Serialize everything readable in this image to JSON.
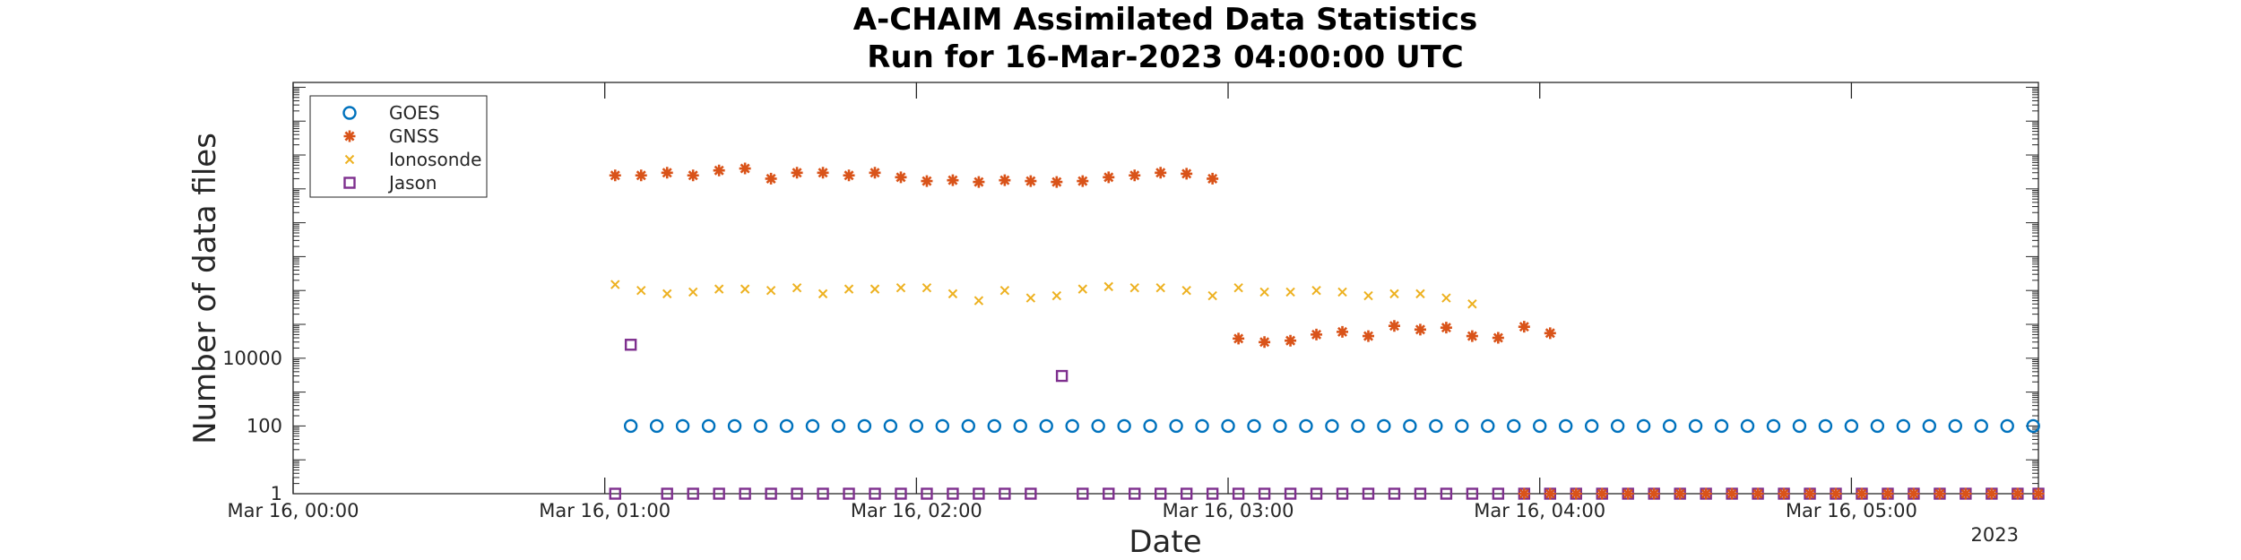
{
  "chart_data": {
    "type": "scatter",
    "title": [
      "A-CHAIM Assimilated Data Statistics",
      "Run for 16-Mar-2023 04:00:00 UTC"
    ],
    "xlabel": "Date",
    "ylabel": "Number of data files",
    "x_unit": "time of day, 16 Mar 2023 (UTC)",
    "xlim": [
      "00:00",
      "05:36"
    ],
    "x_ticks": [
      "00:00",
      "01:00",
      "02:00",
      "03:00",
      "04:00",
      "05:00"
    ],
    "x_tick_labels": [
      "Mar 16, 00:00",
      "Mar 16, 01:00",
      "Mar 16, 02:00",
      "Mar 16, 03:00",
      "Mar 16, 04:00",
      "Mar 16, 05:00"
    ],
    "x_year_label": "2023",
    "y_scale": "log",
    "y_ticks": [
      1,
      100,
      10000
    ],
    "y_tick_labels": [
      "1",
      "100",
      "10000"
    ],
    "legend_position": "top-left",
    "grid": false,
    "series": [
      {
        "name": "GOES",
        "marker": "circle",
        "color": "#0072BD",
        "points": [
          [
            "01:05",
            100
          ],
          [
            "01:10",
            100
          ],
          [
            "01:15",
            100
          ],
          [
            "01:20",
            100
          ],
          [
            "01:25",
            100
          ],
          [
            "01:30",
            100
          ],
          [
            "01:35",
            100
          ],
          [
            "01:40",
            100
          ],
          [
            "01:45",
            100
          ],
          [
            "01:50",
            100
          ],
          [
            "01:55",
            100
          ],
          [
            "02:00",
            100
          ],
          [
            "02:05",
            100
          ],
          [
            "02:10",
            100
          ],
          [
            "02:15",
            100
          ],
          [
            "02:20",
            100
          ],
          [
            "02:25",
            100
          ],
          [
            "02:30",
            100
          ],
          [
            "02:35",
            100
          ],
          [
            "02:40",
            100
          ],
          [
            "02:45",
            100
          ],
          [
            "02:50",
            100
          ],
          [
            "02:55",
            100
          ],
          [
            "03:00",
            100
          ],
          [
            "03:05",
            100
          ],
          [
            "03:10",
            100
          ],
          [
            "03:15",
            100
          ],
          [
            "03:20",
            100
          ],
          [
            "03:25",
            100
          ],
          [
            "03:30",
            100
          ],
          [
            "03:35",
            100
          ],
          [
            "03:40",
            100
          ],
          [
            "03:45",
            100
          ],
          [
            "03:50",
            100
          ],
          [
            "03:55",
            100
          ],
          [
            "04:00",
            100
          ],
          [
            "04:05",
            100
          ],
          [
            "04:10",
            100
          ],
          [
            "04:15",
            100
          ],
          [
            "04:20",
            100
          ],
          [
            "04:25",
            100
          ],
          [
            "04:30",
            100
          ],
          [
            "04:35",
            100
          ],
          [
            "04:40",
            100
          ],
          [
            "04:45",
            100
          ],
          [
            "04:50",
            100
          ],
          [
            "04:55",
            100
          ],
          [
            "05:00",
            100
          ],
          [
            "05:05",
            100
          ],
          [
            "05:10",
            100
          ],
          [
            "05:15",
            100
          ],
          [
            "05:20",
            100
          ],
          [
            "05:25",
            100
          ],
          [
            "05:30",
            100
          ],
          [
            "05:35",
            100
          ]
        ]
      },
      {
        "name": "GNSS",
        "marker": "star",
        "color": "#D95319",
        "points": [
          [
            "01:02",
            2500000000
          ],
          [
            "01:07",
            2500000000
          ],
          [
            "01:12",
            3000000000
          ],
          [
            "01:17",
            2500000000
          ],
          [
            "01:22",
            3500000000
          ],
          [
            "01:27",
            4000000000
          ],
          [
            "01:32",
            2000000000
          ],
          [
            "01:37",
            3000000000
          ],
          [
            "01:42",
            3000000000
          ],
          [
            "01:47",
            2500000000
          ],
          [
            "01:52",
            3000000000
          ],
          [
            "01:57",
            2200000000
          ],
          [
            "02:02",
            1700000000
          ],
          [
            "02:07",
            1800000000
          ],
          [
            "02:12",
            1600000000
          ],
          [
            "02:17",
            1800000000
          ],
          [
            "02:22",
            1700000000
          ],
          [
            "02:27",
            1600000000
          ],
          [
            "02:32",
            1700000000
          ],
          [
            "02:37",
            2200000000
          ],
          [
            "02:42",
            2500000000
          ],
          [
            "02:47",
            3000000000
          ],
          [
            "02:52",
            2800000000
          ],
          [
            "02:57",
            2000000000
          ],
          [
            "03:02",
            38000
          ],
          [
            "03:07",
            30000
          ],
          [
            "03:12",
            33000
          ],
          [
            "03:17",
            50000
          ],
          [
            "03:22",
            60000
          ],
          [
            "03:27",
            45000
          ],
          [
            "03:32",
            90000
          ],
          [
            "03:37",
            70000
          ],
          [
            "03:42",
            80000
          ],
          [
            "03:47",
            45000
          ],
          [
            "03:52",
            40000
          ],
          [
            "03:57",
            85000
          ],
          [
            "04:02",
            55000
          ]
        ]
      },
      {
        "name": "Ionosonde",
        "marker": "x",
        "color": "#EDB120",
        "points": [
          [
            "01:02",
            1500000
          ],
          [
            "01:07",
            1000000
          ],
          [
            "01:12",
            800000
          ],
          [
            "01:17",
            900000
          ],
          [
            "01:22",
            1100000
          ],
          [
            "01:27",
            1100000
          ],
          [
            "01:32",
            1000000
          ],
          [
            "01:37",
            1200000
          ],
          [
            "01:42",
            800000
          ],
          [
            "01:47",
            1100000
          ],
          [
            "01:52",
            1100000
          ],
          [
            "01:57",
            1200000
          ],
          [
            "02:02",
            1200000
          ],
          [
            "02:07",
            800000
          ],
          [
            "02:12",
            500000
          ],
          [
            "02:17",
            1000000
          ],
          [
            "02:22",
            600000
          ],
          [
            "02:27",
            700000
          ],
          [
            "02:32",
            1100000
          ],
          [
            "02:37",
            1300000
          ],
          [
            "02:42",
            1200000
          ],
          [
            "02:47",
            1200000
          ],
          [
            "02:52",
            1000000
          ],
          [
            "02:57",
            700000
          ],
          [
            "03:02",
            1200000
          ],
          [
            "03:07",
            900000
          ],
          [
            "03:12",
            900000
          ],
          [
            "03:17",
            1000000
          ],
          [
            "03:22",
            900000
          ],
          [
            "03:27",
            700000
          ],
          [
            "03:32",
            800000
          ],
          [
            "03:37",
            800000
          ],
          [
            "03:42",
            600000
          ],
          [
            "03:47",
            400000
          ]
        ]
      },
      {
        "name": "Jason",
        "marker": "square",
        "color": "#7E2F8E",
        "points": [
          [
            "01:02",
            1
          ],
          [
            "01:05",
            25000
          ],
          [
            "01:12",
            1
          ],
          [
            "01:17",
            1
          ],
          [
            "01:22",
            1
          ],
          [
            "01:27",
            1
          ],
          [
            "01:32",
            1
          ],
          [
            "01:37",
            1
          ],
          [
            "01:42",
            1
          ],
          [
            "01:47",
            1
          ],
          [
            "01:52",
            1
          ],
          [
            "01:57",
            1
          ],
          [
            "02:02",
            1
          ],
          [
            "02:07",
            1
          ],
          [
            "02:12",
            1
          ],
          [
            "02:17",
            1
          ],
          [
            "02:22",
            1
          ],
          [
            "02:28",
            3000
          ],
          [
            "02:32",
            1
          ],
          [
            "02:37",
            1
          ],
          [
            "02:42",
            1
          ],
          [
            "02:47",
            1
          ],
          [
            "02:52",
            1
          ],
          [
            "02:57",
            1
          ],
          [
            "03:02",
            1
          ],
          [
            "03:07",
            1
          ],
          [
            "03:12",
            1
          ],
          [
            "03:17",
            1
          ],
          [
            "03:22",
            1
          ],
          [
            "03:27",
            1
          ],
          [
            "03:32",
            1
          ],
          [
            "03:37",
            1
          ],
          [
            "03:42",
            1
          ],
          [
            "03:47",
            1
          ],
          [
            "03:52",
            1
          ],
          [
            "03:57",
            1
          ],
          [
            "04:02",
            1
          ],
          [
            "04:07",
            1
          ],
          [
            "04:12",
            1
          ],
          [
            "04:17",
            1
          ],
          [
            "04:22",
            1
          ],
          [
            "04:27",
            1
          ],
          [
            "04:32",
            1
          ],
          [
            "04:37",
            1
          ],
          [
            "04:42",
            1
          ],
          [
            "04:47",
            1
          ],
          [
            "04:52",
            1
          ],
          [
            "04:57",
            1
          ],
          [
            "05:02",
            1
          ],
          [
            "05:07",
            1
          ],
          [
            "05:12",
            1
          ],
          [
            "05:17",
            1
          ],
          [
            "05:22",
            1
          ],
          [
            "05:27",
            1
          ],
          [
            "05:32",
            1
          ],
          [
            "05:36",
            1
          ]
        ]
      },
      {
        "name": "",
        "marker": "star",
        "color": "#D95319",
        "points": [
          [
            "03:57",
            1
          ],
          [
            "04:02",
            1
          ],
          [
            "04:07",
            1
          ],
          [
            "04:12",
            1
          ],
          [
            "04:17",
            1
          ],
          [
            "04:22",
            1
          ],
          [
            "04:27",
            1
          ],
          [
            "04:32",
            1
          ],
          [
            "04:37",
            1
          ],
          [
            "04:42",
            1
          ],
          [
            "04:47",
            1
          ],
          [
            "04:52",
            1
          ],
          [
            "04:57",
            1
          ],
          [
            "05:02",
            1
          ],
          [
            "05:07",
            1
          ],
          [
            "05:12",
            1
          ],
          [
            "05:17",
            1
          ],
          [
            "05:22",
            1
          ],
          [
            "05:27",
            1
          ],
          [
            "05:32",
            1
          ],
          [
            "05:36",
            1
          ]
        ]
      }
    ]
  }
}
